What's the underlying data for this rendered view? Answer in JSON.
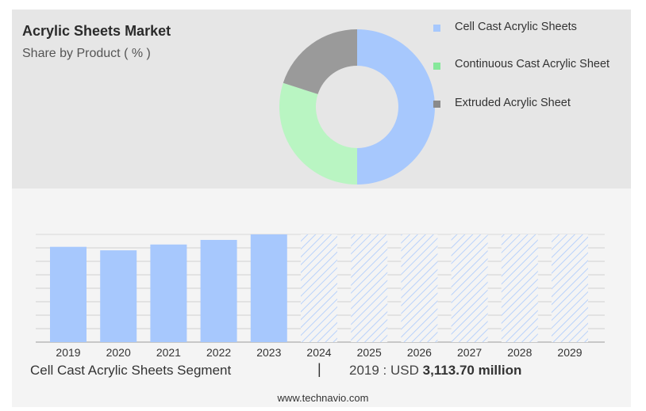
{
  "header": {
    "title": "Acrylic Sheets Market",
    "subtitle": "Share by Product ( % )"
  },
  "legend": [
    {
      "label": "Cell Cast Acrylic Sheets",
      "color": "#a7c8fd"
    },
    {
      "label": "Continuous Cast Acrylic Sheet",
      "color": "#86e89a"
    },
    {
      "label": "Extruded Acrylic Sheet",
      "color": "#8a8a8a"
    }
  ],
  "chart_data": [
    {
      "type": "pie",
      "variant": "donut",
      "series": [
        {
          "name": "Cell Cast Acrylic Sheets",
          "value": 50,
          "color": "#a7c8fd"
        },
        {
          "name": "Continuous Cast Acrylic Sheet",
          "value": 30,
          "color": "#b9f5c2"
        },
        {
          "name": "Extruded Acrylic Sheet",
          "value": 20,
          "color": "#9a9a9a"
        }
      ]
    },
    {
      "type": "bar",
      "categories": [
        "2019",
        "2020",
        "2021",
        "2022",
        "2023",
        "2024",
        "2025",
        "2026",
        "2027",
        "2028",
        "2029"
      ],
      "values": [
        3113.7,
        3000,
        3190,
        3340,
        3520,
        null,
        null,
        null,
        null,
        null,
        null
      ],
      "forecast_categories": [
        "2024",
        "2025",
        "2026",
        "2027",
        "2028",
        "2029"
      ],
      "bar_color": "#a7c8fd",
      "forecast_pattern": "diagonal hatch",
      "grid": true
    }
  ],
  "footer": {
    "segment": "Cell Cast Acrylic Sheets Segment",
    "separator": "|",
    "value_prefix": "2019 : USD",
    "value": "3,113.70 million"
  },
  "source": "www.technavio.com"
}
